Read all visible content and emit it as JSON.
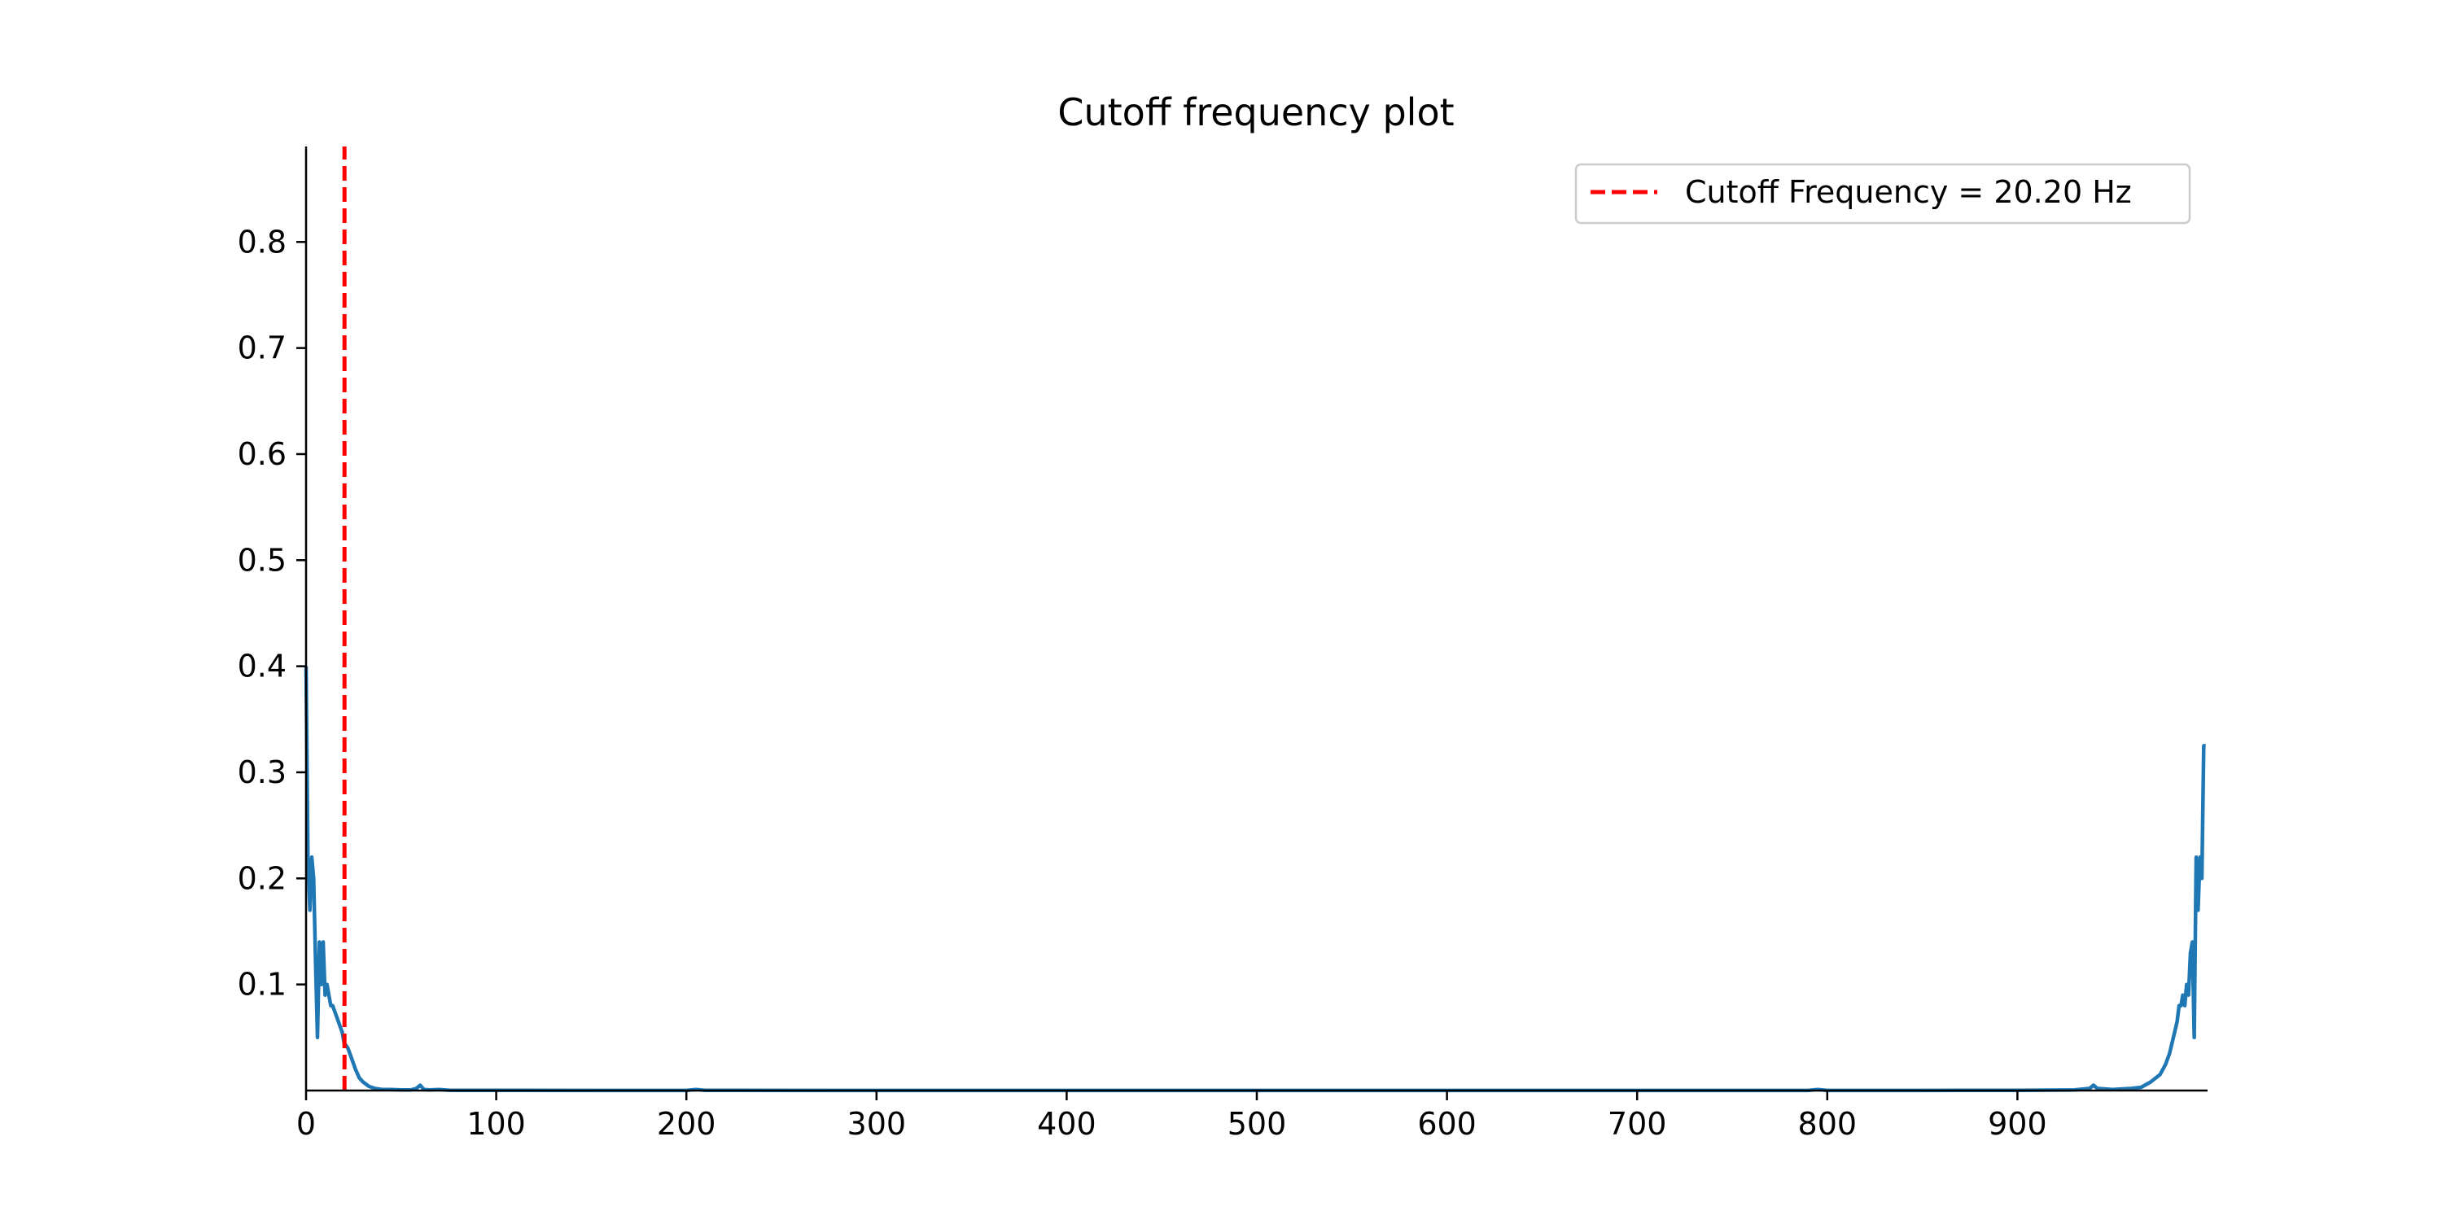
{
  "chart_data": {
    "type": "line",
    "title": "Cutoff frequency plot",
    "xlabel": "",
    "ylabel": "",
    "xlim": [
      0,
      1000
    ],
    "ylim": [
      0,
      0.89
    ],
    "x_ticks": [
      0,
      100,
      200,
      300,
      400,
      500,
      600,
      700,
      800,
      900
    ],
    "y_ticks": [
      0.1,
      0.2,
      0.3,
      0.4,
      0.5,
      0.6,
      0.7,
      0.8
    ],
    "grid": false,
    "legend_position": "top-right",
    "series": [
      {
        "color": "#1f77b4",
        "style": "solid",
        "x": [
          0,
          1,
          2,
          3,
          4,
          5,
          6,
          7,
          8,
          9,
          10,
          11,
          12,
          13,
          14,
          15,
          16,
          17,
          18,
          19,
          20,
          22,
          24,
          26,
          28,
          30,
          33,
          36,
          40,
          45,
          50,
          55,
          58,
          60,
          62,
          65,
          70,
          75,
          80,
          100,
          150,
          200,
          205,
          210,
          300,
          400,
          500,
          600,
          700,
          790,
          795,
          800,
          850,
          900,
          930,
          938,
          940,
          942,
          950,
          960,
          965,
          970,
          975,
          978,
          980,
          982,
          984,
          985,
          986,
          987,
          988,
          989,
          990,
          991,
          992,
          993,
          994,
          995,
          996,
          997,
          998,
          999
        ],
        "y": [
          0.4,
          0.22,
          0.17,
          0.22,
          0.2,
          0.12,
          0.05,
          0.14,
          0.1,
          0.14,
          0.09,
          0.1,
          0.09,
          0.08,
          0.08,
          0.075,
          0.07,
          0.065,
          0.06,
          0.055,
          0.045,
          0.04,
          0.03,
          0.02,
          0.012,
          0.008,
          0.004,
          0.002,
          0.001,
          0.001,
          0.0005,
          0.0005,
          0.002,
          0.005,
          0.001,
          0.0005,
          0.001,
          0.0003,
          0.0002,
          0.0002,
          0.0001,
          0.0001,
          0.001,
          0.0002,
          0.0001,
          0.0001,
          0.0001,
          0.0001,
          0.0001,
          0.0001,
          0.001,
          0.0001,
          0.0001,
          0.0002,
          0.0005,
          0.002,
          0.005,
          0.002,
          0.001,
          0.002,
          0.003,
          0.008,
          0.015,
          0.025,
          0.035,
          0.05,
          0.065,
          0.08,
          0.08,
          0.09,
          0.08,
          0.1,
          0.09,
          0.13,
          0.14,
          0.05,
          0.22,
          0.17,
          0.22,
          0.2,
          0.325,
          0.325
        ]
      },
      {
        "name": "Cutoff Frequency = 20.20 Hz",
        "color": "#ff0000",
        "style": "dashed",
        "x": [
          20.2,
          20.2
        ],
        "y": [
          0,
          0.89
        ]
      }
    ]
  }
}
